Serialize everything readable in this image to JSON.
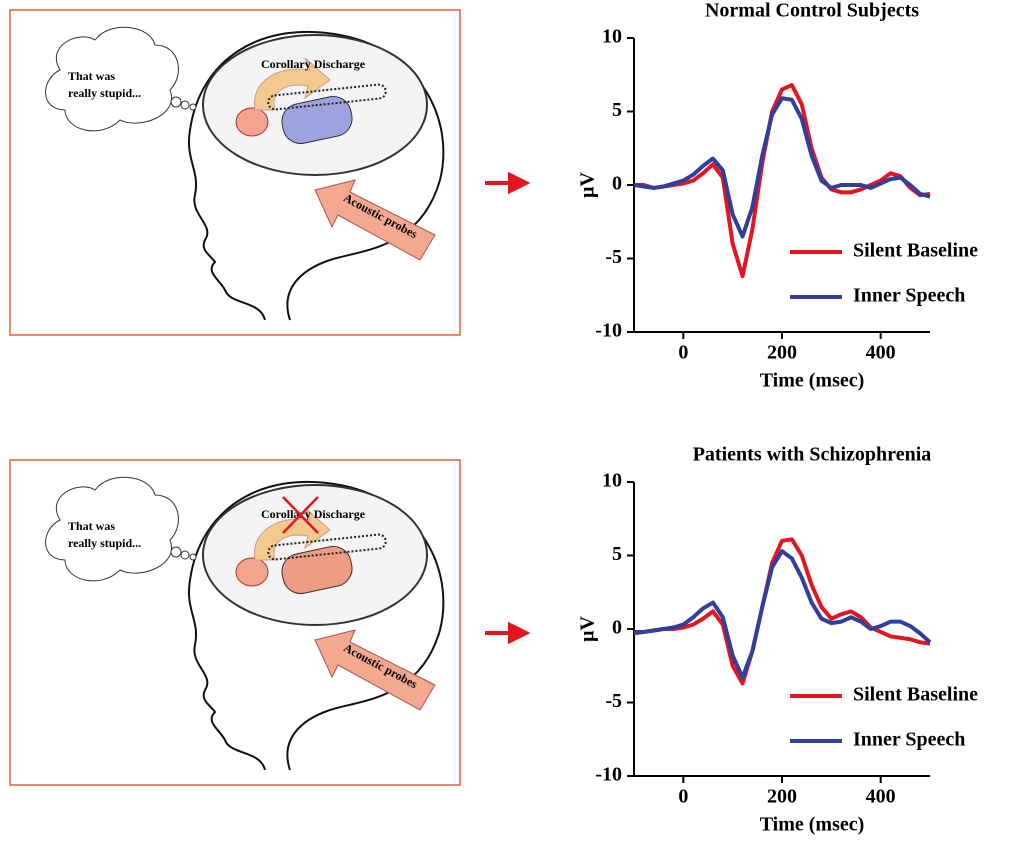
{
  "illustrations": [
    {
      "thought": [
        "That was",
        "really stupid..."
      ],
      "label": "Corollary Discharge",
      "probe": "Acoustic probes"
    },
    {
      "thought": [
        "That was",
        "really stupid..."
      ],
      "label": "Corollary Discharge",
      "probe": "Acoustic probes"
    }
  ],
  "chart_data": [
    {
      "type": "line",
      "title": "Normal Control Subjects",
      "ylabel": "μV",
      "xlabel": "Time (msec)",
      "x": [
        -100,
        -80,
        -60,
        -40,
        -20,
        0,
        20,
        40,
        60,
        80,
        100,
        120,
        140,
        160,
        180,
        200,
        220,
        240,
        260,
        280,
        300,
        320,
        340,
        360,
        380,
        400,
        420,
        440,
        460,
        480,
        500
      ],
      "series": [
        {
          "name": "Silent Baseline",
          "color": "#e3161f",
          "values": [
            0,
            0,
            -0.2,
            -0.1,
            0,
            0.1,
            0.3,
            0.8,
            1.4,
            0.5,
            -4,
            -6.2,
            -3,
            1.5,
            5,
            6.5,
            6.8,
            5.5,
            2.5,
            0.5,
            -0.3,
            -0.5,
            -0.5,
            -0.3,
            0,
            0.3,
            0.8,
            0.6,
            -0.2,
            -0.7,
            -0.6
          ]
        },
        {
          "name": "Inner Speech",
          "color": "#2f3f9e",
          "values": [
            0,
            -0.1,
            -0.2,
            -0.1,
            0.1,
            0.3,
            0.7,
            1.3,
            1.8,
            1,
            -2,
            -3.5,
            -1.5,
            2,
            4.8,
            5.9,
            5.8,
            4.5,
            2,
            0.3,
            -0.2,
            0,
            0,
            0,
            -0.2,
            0.1,
            0.4,
            0.5,
            0,
            -0.6,
            -0.8
          ]
        }
      ],
      "xlim": [
        -100,
        500
      ],
      "xticks": [
        0,
        200,
        400
      ],
      "ylim": [
        -10,
        10
      ],
      "yticks": [
        -10,
        -5,
        0,
        5,
        10
      ],
      "legend": "lower right"
    },
    {
      "type": "line",
      "title": "Patients with Schizophrenia",
      "ylabel": "μV",
      "xlabel": "Time (msec)",
      "x": [
        -100,
        -80,
        -60,
        -40,
        -20,
        0,
        20,
        40,
        60,
        80,
        100,
        120,
        140,
        160,
        180,
        200,
        220,
        240,
        260,
        280,
        300,
        320,
        340,
        360,
        380,
        400,
        420,
        440,
        460,
        480,
        500
      ],
      "series": [
        {
          "name": "Silent Baseline",
          "color": "#e3161f",
          "values": [
            -0.3,
            -0.2,
            -0.1,
            0,
            0,
            0.1,
            0.3,
            0.7,
            1.2,
            0.3,
            -2.5,
            -3.7,
            -1.5,
            1.5,
            4.5,
            6,
            6.1,
            5,
            3,
            1.5,
            0.7,
            1,
            1.2,
            0.8,
            0.1,
            -0.2,
            -0.5,
            -0.6,
            -0.7,
            -0.9,
            -1
          ]
        },
        {
          "name": "Inner Speech",
          "color": "#2f3f9e",
          "values": [
            -0.2,
            -0.2,
            -0.1,
            0,
            0.1,
            0.3,
            0.8,
            1.4,
            1.8,
            0.8,
            -1.8,
            -3.3,
            -1.5,
            1.5,
            4.2,
            5.3,
            4.8,
            3.5,
            1.8,
            0.7,
            0.4,
            0.5,
            0.8,
            0.5,
            0,
            0.2,
            0.5,
            0.5,
            0.2,
            -0.3,
            -0.9
          ]
        }
      ],
      "xlim": [
        -100,
        500
      ],
      "xticks": [
        0,
        200,
        400
      ],
      "ylim": [
        -10,
        10
      ],
      "yticks": [
        -10,
        -5,
        0,
        5,
        10
      ],
      "legend": "lower right"
    }
  ]
}
